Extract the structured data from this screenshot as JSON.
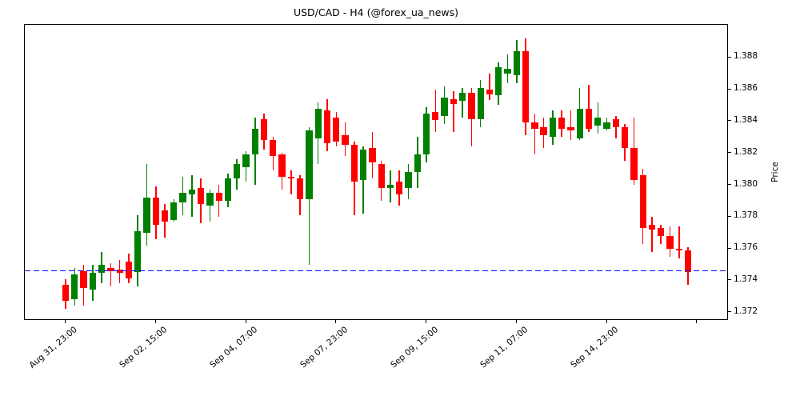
{
  "chart_data": {
    "type": "candlestick",
    "title": "USD/CAD - H4 (@forex_ua_news)",
    "ylabel": "Price",
    "up_color": "#008000",
    "down_color": "#ff0000",
    "background": "#ffffff",
    "grid": false,
    "legend": "none",
    "ylim": [
      1.37146,
      1.39005
    ],
    "hline": {
      "value": 1.3746,
      "color": "#0000ff",
      "style": "dashed"
    },
    "y_ticks": [
      {
        "label": "1.372",
        "value": 1.372
      },
      {
        "label": "1.374",
        "value": 1.374
      },
      {
        "label": "1.376",
        "value": 1.376
      },
      {
        "label": "1.378",
        "value": 1.378
      },
      {
        "label": "1.380",
        "value": 1.38
      },
      {
        "label": "1.382",
        "value": 1.382
      },
      {
        "label": "1.384",
        "value": 1.384
      },
      {
        "label": "1.386",
        "value": 1.386
      },
      {
        "label": "1.388",
        "value": 1.388
      }
    ],
    "x_ticks": [
      {
        "index": 0,
        "label": "Aug 31, 23:00"
      },
      {
        "index": 10,
        "label": "Sep 02, 15:00"
      },
      {
        "index": 20,
        "label": "Sep 04, 07:00"
      },
      {
        "index": 30,
        "label": "Sep 07, 23:00"
      },
      {
        "index": 40,
        "label": "Sep 09, 15:00"
      },
      {
        "index": 50,
        "label": "Sep 11, 07:00"
      },
      {
        "index": 60,
        "label": "Sep 14, 23:00"
      },
      {
        "index": 70,
        "label": ""
      }
    ],
    "candles_format": [
      "open",
      "high",
      "low",
      "close"
    ],
    "candles": [
      [
        1.3737,
        1.3741,
        1.3722,
        1.3727
      ],
      [
        1.3728,
        1.3748,
        1.3724,
        1.3744
      ],
      [
        1.3746,
        1.375,
        1.3724,
        1.3735
      ],
      [
        1.3734,
        1.375,
        1.3727,
        1.3745
      ],
      [
        1.3745,
        1.3758,
        1.3738,
        1.375
      ],
      [
        1.3748,
        1.3751,
        1.3736,
        1.3746
      ],
      [
        1.3747,
        1.3753,
        1.3738,
        1.3745
      ],
      [
        1.3752,
        1.3757,
        1.3738,
        1.3741
      ],
      [
        1.3745,
        1.3781,
        1.3736,
        1.3771
      ],
      [
        1.377,
        1.3813,
        1.3762,
        1.3792
      ],
      [
        1.3792,
        1.3799,
        1.3766,
        1.3775
      ],
      [
        1.3784,
        1.3788,
        1.3767,
        1.3777
      ],
      [
        1.3778,
        1.3791,
        1.3777,
        1.3789
      ],
      [
        1.3789,
        1.3805,
        1.3781,
        1.3795
      ],
      [
        1.3794,
        1.3806,
        1.378,
        1.3797
      ],
      [
        1.3798,
        1.3804,
        1.3776,
        1.3788
      ],
      [
        1.3787,
        1.3797,
        1.3777,
        1.3795
      ],
      [
        1.3795,
        1.38,
        1.378,
        1.379
      ],
      [
        1.379,
        1.3807,
        1.3786,
        1.3804
      ],
      [
        1.3804,
        1.3816,
        1.3797,
        1.3813
      ],
      [
        1.3811,
        1.3821,
        1.3802,
        1.3819
      ],
      [
        1.3819,
        1.3842,
        1.38,
        1.3835
      ],
      [
        1.3841,
        1.3845,
        1.3822,
        1.3828
      ],
      [
        1.3828,
        1.383,
        1.3809,
        1.3818
      ],
      [
        1.3819,
        1.382,
        1.3797,
        1.3805
      ],
      [
        1.3805,
        1.3809,
        1.3794,
        1.3804
      ],
      [
        1.3804,
        1.3806,
        1.3781,
        1.3791
      ],
      [
        1.3791,
        1.3836,
        1.375,
        1.3834
      ],
      [
        1.3829,
        1.3852,
        1.3813,
        1.3848
      ],
      [
        1.3847,
        1.3854,
        1.3821,
        1.3826
      ],
      [
        1.3842,
        1.3846,
        1.3824,
        1.3827
      ],
      [
        1.3831,
        1.3839,
        1.3818,
        1.3825
      ],
      [
        1.3825,
        1.3827,
        1.3781,
        1.3802
      ],
      [
        1.3803,
        1.3824,
        1.3782,
        1.3822
      ],
      [
        1.3823,
        1.3833,
        1.3804,
        1.3814
      ],
      [
        1.3813,
        1.3815,
        1.379,
        1.3798
      ],
      [
        1.3798,
        1.3809,
        1.3789,
        1.38
      ],
      [
        1.3802,
        1.3809,
        1.3787,
        1.3794
      ],
      [
        1.3798,
        1.3813,
        1.3791,
        1.3808
      ],
      [
        1.3808,
        1.383,
        1.3798,
        1.3819
      ],
      [
        1.3819,
        1.3849,
        1.3814,
        1.3845
      ],
      [
        1.3846,
        1.386,
        1.3833,
        1.3841
      ],
      [
        1.3843,
        1.3862,
        1.3838,
        1.3855
      ],
      [
        1.3854,
        1.3859,
        1.3833,
        1.3851
      ],
      [
        1.3853,
        1.3861,
        1.3842,
        1.3858
      ],
      [
        1.3858,
        1.3861,
        1.3824,
        1.3841
      ],
      [
        1.3841,
        1.3866,
        1.3836,
        1.3861
      ],
      [
        1.386,
        1.387,
        1.3853,
        1.3857
      ],
      [
        1.3856,
        1.3877,
        1.385,
        1.3874
      ],
      [
        1.387,
        1.3882,
        1.3864,
        1.3873
      ],
      [
        1.3869,
        1.3891,
        1.3864,
        1.3884
      ],
      [
        1.3884,
        1.3892,
        1.3831,
        1.3839
      ],
      [
        1.3839,
        1.3845,
        1.3819,
        1.3835
      ],
      [
        1.3836,
        1.3842,
        1.3823,
        1.3831
      ],
      [
        1.383,
        1.3847,
        1.3825,
        1.3842
      ],
      [
        1.3842,
        1.3847,
        1.383,
        1.3835
      ],
      [
        1.3836,
        1.3847,
        1.3828,
        1.3834
      ],
      [
        1.3829,
        1.3861,
        1.3828,
        1.3848
      ],
      [
        1.3848,
        1.3863,
        1.3833,
        1.3835
      ],
      [
        1.3837,
        1.3852,
        1.3832,
        1.3842
      ],
      [
        1.3835,
        1.3842,
        1.3834,
        1.3839
      ],
      [
        1.3841,
        1.3843,
        1.3829,
        1.3836
      ],
      [
        1.3836,
        1.3838,
        1.3815,
        1.3823
      ],
      [
        1.3823,
        1.3842,
        1.38,
        1.3803
      ],
      [
        1.3806,
        1.381,
        1.3763,
        1.3773
      ],
      [
        1.3775,
        1.378,
        1.3758,
        1.3772
      ],
      [
        1.3773,
        1.3775,
        1.3763,
        1.3768
      ],
      [
        1.3768,
        1.3774,
        1.3755,
        1.376
      ],
      [
        1.376,
        1.3774,
        1.3754,
        1.3759
      ],
      [
        1.3759,
        1.3761,
        1.3737,
        1.3745
      ]
    ]
  }
}
